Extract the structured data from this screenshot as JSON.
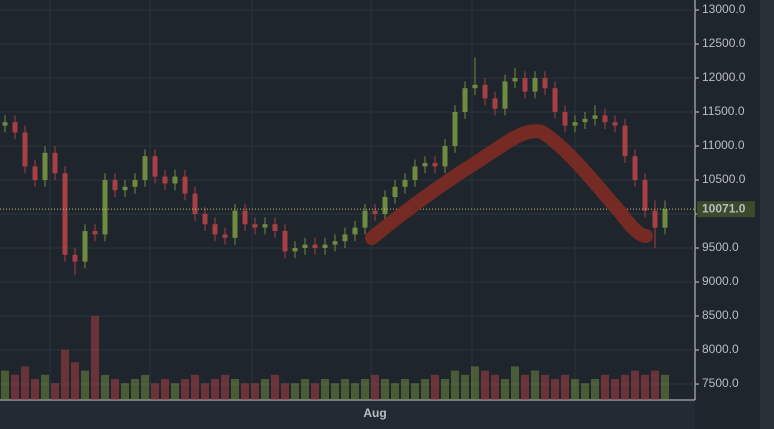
{
  "chart_data": {
    "type": "candlestick",
    "categories": [
      null,
      null,
      null,
      null,
      null,
      null,
      null,
      null,
      null,
      null,
      null,
      null,
      null,
      null,
      null,
      null,
      null,
      null,
      null,
      null,
      null,
      null,
      null,
      null,
      null,
      null,
      null,
      null,
      null,
      null,
      null,
      null,
      null,
      null,
      null,
      null,
      null,
      "Aug",
      null,
      null,
      null,
      null,
      null,
      null,
      null,
      null,
      null,
      null,
      null,
      null,
      null,
      null,
      null,
      null,
      null,
      null,
      null,
      null,
      null,
      null,
      null,
      null,
      null,
      null,
      null,
      null,
      null
    ],
    "open": [
      11300,
      11350,
      11200,
      10700,
      10500,
      10900,
      10600,
      9400,
      9300,
      9750,
      9700,
      10500,
      10350,
      10400,
      10500,
      10850,
      10550,
      10450,
      10550,
      10300,
      10000,
      9850,
      9700,
      9650,
      10050,
      9850,
      9800,
      9850,
      9750,
      9450,
      9500,
      9550,
      9500,
      9550,
      9600,
      9700,
      9800,
      10050,
      10000,
      10250,
      10400,
      10500,
      10700,
      10750,
      10700,
      11000,
      11500,
      11850,
      11900,
      11700,
      11550,
      11950,
      12000,
      11800,
      12000,
      11850,
      11500,
      11300,
      11350,
      11400,
      11450,
      11350,
      11300,
      10850,
      10500,
      10050,
      9800
    ],
    "high": [
      11450,
      11450,
      11300,
      10800,
      11000,
      11000,
      10700,
      9500,
      9850,
      9850,
      10600,
      10600,
      10500,
      10600,
      10950,
      10950,
      10650,
      10650,
      10650,
      10400,
      10100,
      9950,
      9800,
      10150,
      10150,
      9950,
      9950,
      9950,
      9850,
      9600,
      9650,
      9650,
      9650,
      9700,
      9800,
      9900,
      10150,
      10150,
      10350,
      10500,
      10600,
      10800,
      10850,
      10850,
      11100,
      11600,
      11950,
      12300,
      12000,
      11800,
      12050,
      12150,
      12100,
      12100,
      12100,
      11950,
      11600,
      11450,
      11500,
      11600,
      11550,
      11450,
      11400,
      10950,
      10600,
      10200,
      10200
    ],
    "low": [
      11200,
      11100,
      10600,
      10400,
      10400,
      10500,
      9300,
      9100,
      9200,
      9600,
      9600,
      10250,
      10250,
      10300,
      10400,
      10450,
      10350,
      10350,
      10200,
      9900,
      9750,
      9600,
      9550,
      9550,
      9750,
      9700,
      9700,
      9650,
      9350,
      9350,
      9400,
      9400,
      9400,
      9450,
      9500,
      9600,
      9700,
      9900,
      9900,
      10150,
      10300,
      10400,
      10600,
      10600,
      10600,
      10900,
      11400,
      11750,
      11600,
      11450,
      11450,
      11850,
      11700,
      11700,
      11750,
      11400,
      11200,
      11200,
      11250,
      11300,
      11250,
      11200,
      10750,
      10400,
      9950,
      9500,
      9700
    ],
    "close": [
      11350,
      11200,
      10700,
      10500,
      10900,
      10600,
      9400,
      9300,
      9750,
      9700,
      10500,
      10350,
      10400,
      10500,
      10850,
      10550,
      10450,
      10550,
      10300,
      10000,
      9850,
      9700,
      9650,
      10050,
      9850,
      9800,
      9850,
      9750,
      9450,
      9500,
      9550,
      9500,
      9550,
      9600,
      9700,
      9800,
      10050,
      10000,
      10250,
      10400,
      10500,
      10700,
      10750,
      10700,
      11000,
      11500,
      11850,
      11900,
      11700,
      11550,
      11950,
      12000,
      11800,
      12000,
      11850,
      11500,
      11300,
      11350,
      11400,
      11450,
      11350,
      11300,
      10850,
      10500,
      10050,
      9800,
      10071
    ],
    "volume": [
      35,
      30,
      40,
      25,
      30,
      20,
      60,
      45,
      35,
      100,
      30,
      25,
      20,
      25,
      30,
      20,
      25,
      20,
      25,
      30,
      20,
      25,
      30,
      25,
      20,
      20,
      25,
      30,
      20,
      20,
      25,
      20,
      25,
      20,
      25,
      20,
      25,
      30,
      25,
      20,
      25,
      20,
      25,
      30,
      25,
      35,
      30,
      40,
      35,
      30,
      25,
      40,
      30,
      35,
      30,
      25,
      30,
      25,
      20,
      25,
      30,
      25,
      30,
      35,
      30,
      35,
      30
    ],
    "up_color": "#6f8b3f",
    "down_color": "#a83f44",
    "ylim": [
      7265,
      13147
    ],
    "yticks": [
      {
        "value": 7500,
        "label": "7500.0"
      },
      {
        "value": 8000,
        "label": "8000.0"
      },
      {
        "value": 8500,
        "label": "8500.0"
      },
      {
        "value": 9000,
        "label": "9000.0"
      },
      {
        "value": 9500,
        "label": "9500.0"
      },
      {
        "value": 10000,
        "label": "10000.0"
      },
      {
        "value": 10500,
        "label": "10500.0"
      },
      {
        "value": 11000,
        "label": "11000.0"
      },
      {
        "value": 11500,
        "label": "11500.0"
      },
      {
        "value": 12000,
        "label": "12000.0"
      },
      {
        "value": 12500,
        "label": "12500.0"
      },
      {
        "value": 13000,
        "label": "13000.0"
      }
    ],
    "last_price": {
      "value": 10071,
      "label": "10071.0"
    },
    "grid": true
  }
}
